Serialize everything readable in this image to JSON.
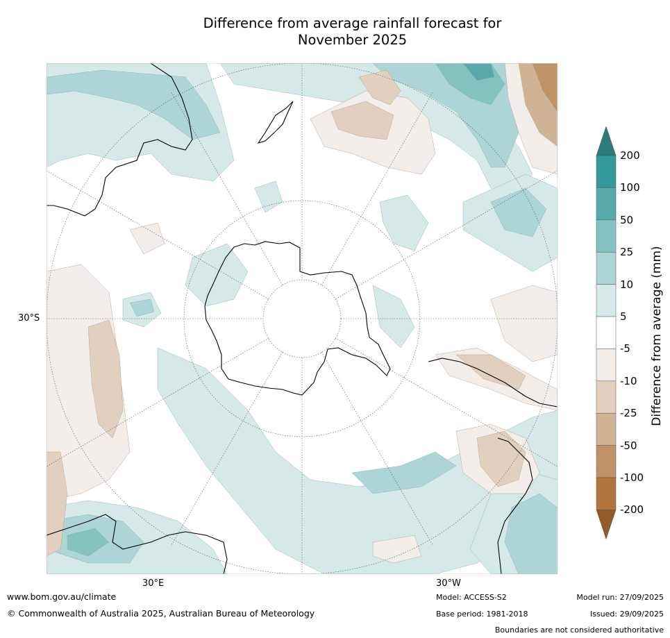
{
  "title": {
    "line1": "Difference from average rainfall forecast for",
    "line2": "November 2025"
  },
  "map": {
    "lat_label": "30°S",
    "lon_labels": {
      "east": "30°E",
      "west": "30°W"
    }
  },
  "colorbar": {
    "title": "Difference from average (mm)",
    "ticks": [
      "200",
      "100",
      "50",
      "25",
      "10",
      "5",
      "-5",
      "-10",
      "-25",
      "-50",
      "-100",
      "-200"
    ],
    "colors": {
      "gt200": "#2a7d7b",
      "100_200": "#33999a",
      "50_100": "#5aaaab",
      "25_50": "#83c2c1",
      "10_25": "#aed5d5",
      "5_10": "#d5e9e8",
      "neutral": "#ffffff",
      "m5_m10": "#f2ede8",
      "m10_m25": "#e2cfbd",
      "m25_m50": "#d0b394",
      "m50_m100": "#bf9366",
      "m100_m200": "#b0763e",
      "lt_m200": "#925c26"
    }
  },
  "footer": {
    "url": "www.bom.gov.au/climate",
    "copyright": "© Commonwealth of Australia 2025, Australian Bureau of Meteorology",
    "model": "Model: ACCESS-S2",
    "base_period": "Base period: 1981-2018",
    "model_run": "Model run: 27/09/2025",
    "issued": "Issued: 29/09/2025",
    "boundaries": "Boundaries are not considered authoritative"
  }
}
